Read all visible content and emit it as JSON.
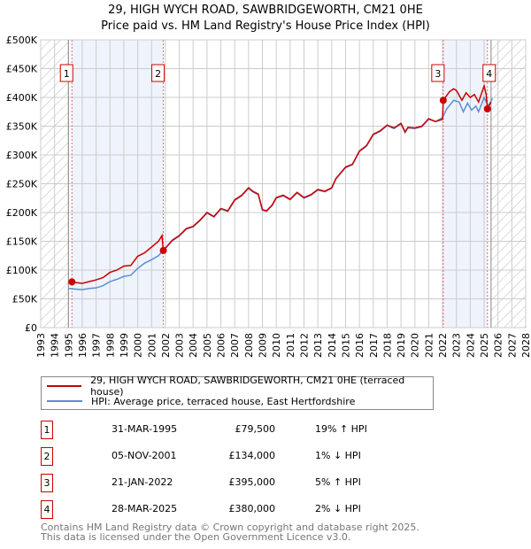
{
  "title": "29, HIGH WYCH ROAD, SAWBRIDGEWORTH, CM21 0HE",
  "subtitle": "Price paid vs. HM Land Registry's House Price Index (HPI)",
  "chart_data": {
    "type": "line",
    "xlim": [
      1993,
      2028
    ],
    "ylim": [
      0,
      500000
    ],
    "x_ticks": [
      "1993",
      "1994",
      "1995",
      "1996",
      "1997",
      "1998",
      "1999",
      "2000",
      "2001",
      "2002",
      "2003",
      "2004",
      "2005",
      "2006",
      "2007",
      "2008",
      "2009",
      "2010",
      "2011",
      "2012",
      "2013",
      "2014",
      "2015",
      "2016",
      "2017",
      "2018",
      "2019",
      "2020",
      "2021",
      "2022",
      "2023",
      "2024",
      "2025",
      "2026",
      "2027",
      "2028"
    ],
    "y_ticks": [
      {
        "v": 0,
        "label": "£0"
      },
      {
        "v": 50000,
        "label": "£50K"
      },
      {
        "v": 100000,
        "label": "£100K"
      },
      {
        "v": 150000,
        "label": "£150K"
      },
      {
        "v": 200000,
        "label": "£200K"
      },
      {
        "v": 250000,
        "label": "£250K"
      },
      {
        "v": 300000,
        "label": "£300K"
      },
      {
        "v": 350000,
        "label": "£350K"
      },
      {
        "v": 400000,
        "label": "£400K"
      },
      {
        "v": 450000,
        "label": "£450K"
      },
      {
        "v": 500000,
        "label": "£500K"
      }
    ],
    "grid": true,
    "data_start": 1995.0,
    "data_end": 2025.5,
    "series": [
      {
        "name": "29, HIGH WYCH ROAD, SAWBRIDGEWORTH, CM21 0HE (terraced house)",
        "color": "#cc0000",
        "points": [
          [
            1995.25,
            79500
          ],
          [
            1995.6,
            78000
          ],
          [
            1996,
            77000
          ],
          [
            1996.5,
            80000
          ],
          [
            1997,
            83000
          ],
          [
            1997.5,
            87000
          ],
          [
            1998,
            96000
          ],
          [
            1998.5,
            100000
          ],
          [
            1999,
            107000
          ],
          [
            1999.5,
            108000
          ],
          [
            2000,
            124000
          ],
          [
            2000.5,
            130000
          ],
          [
            2001,
            140000
          ],
          [
            2001.5,
            150000
          ],
          [
            2001.75,
            160000
          ],
          [
            2001.85,
            134000
          ],
          [
            2002.5,
            152000
          ],
          [
            2003,
            160000
          ],
          [
            2003.5,
            172000
          ],
          [
            2004,
            176000
          ],
          [
            2004.5,
            187000
          ],
          [
            2005,
            200000
          ],
          [
            2005.5,
            193000
          ],
          [
            2006,
            207000
          ],
          [
            2006.5,
            203000
          ],
          [
            2007,
            222000
          ],
          [
            2007.5,
            230000
          ],
          [
            2008,
            243000
          ],
          [
            2008.3,
            237000
          ],
          [
            2008.7,
            232000
          ],
          [
            2009,
            205000
          ],
          [
            2009.3,
            203000
          ],
          [
            2009.7,
            213000
          ],
          [
            2010,
            226000
          ],
          [
            2010.5,
            230000
          ],
          [
            2011,
            223000
          ],
          [
            2011.5,
            235000
          ],
          [
            2012,
            226000
          ],
          [
            2012.5,
            231000
          ],
          [
            2013,
            240000
          ],
          [
            2013.5,
            237000
          ],
          [
            2014,
            243000
          ],
          [
            2014.3,
            259000
          ],
          [
            2015,
            279000
          ],
          [
            2015.5,
            284000
          ],
          [
            2016,
            307000
          ],
          [
            2016.5,
            316000
          ],
          [
            2017,
            336000
          ],
          [
            2017.5,
            342000
          ],
          [
            2018,
            352000
          ],
          [
            2018.5,
            347000
          ],
          [
            2019,
            355000
          ],
          [
            2019.3,
            340000
          ],
          [
            2019.5,
            348000
          ],
          [
            2020,
            347000
          ],
          [
            2020.5,
            350000
          ],
          [
            2021,
            363000
          ],
          [
            2021.5,
            358000
          ],
          [
            2022,
            362000
          ],
          [
            2022.05,
            395000
          ],
          [
            2022.5,
            410000
          ],
          [
            2022.8,
            415000
          ],
          [
            2023,
            412000
          ],
          [
            2023.4,
            395000
          ],
          [
            2023.7,
            408000
          ],
          [
            2024,
            400000
          ],
          [
            2024.3,
            405000
          ],
          [
            2024.6,
            392000
          ],
          [
            2025,
            420000
          ],
          [
            2025.15,
            405000
          ],
          [
            2025.24,
            380000
          ],
          [
            2025.5,
            392000
          ]
        ]
      },
      {
        "name": "HPI: Average price, terraced house, East Hertfordshire",
        "color": "#5b8fd6",
        "points": [
          [
            1995.0,
            68000
          ],
          [
            1995.5,
            67000
          ],
          [
            1996,
            66000
          ],
          [
            1996.5,
            68000
          ],
          [
            1997,
            69000
          ],
          [
            1997.5,
            73000
          ],
          [
            1998,
            80000
          ],
          [
            1998.5,
            84000
          ],
          [
            1999,
            89000
          ],
          [
            1999.5,
            91000
          ],
          [
            2000,
            103000
          ],
          [
            2000.5,
            112000
          ],
          [
            2001,
            118000
          ],
          [
            2001.5,
            125000
          ],
          [
            2001.85,
            134000
          ],
          [
            2002.5,
            151000
          ],
          [
            2003,
            159000
          ],
          [
            2003.5,
            171000
          ],
          [
            2004,
            175000
          ],
          [
            2004.5,
            186000
          ],
          [
            2005,
            199000
          ],
          [
            2005.5,
            192000
          ],
          [
            2006,
            206000
          ],
          [
            2006.5,
            202000
          ],
          [
            2007,
            221000
          ],
          [
            2007.5,
            229000
          ],
          [
            2008,
            242000
          ],
          [
            2008.3,
            236000
          ],
          [
            2008.7,
            231000
          ],
          [
            2009,
            204000
          ],
          [
            2009.3,
            202000
          ],
          [
            2009.7,
            212000
          ],
          [
            2010,
            225000
          ],
          [
            2010.5,
            229000
          ],
          [
            2011,
            222000
          ],
          [
            2011.5,
            234000
          ],
          [
            2012,
            225000
          ],
          [
            2012.5,
            230000
          ],
          [
            2013,
            239000
          ],
          [
            2013.5,
            236000
          ],
          [
            2014,
            242000
          ],
          [
            2014.3,
            258000
          ],
          [
            2015,
            278000
          ],
          [
            2015.5,
            283000
          ],
          [
            2016,
            306000
          ],
          [
            2016.5,
            315000
          ],
          [
            2017,
            335000
          ],
          [
            2017.5,
            341000
          ],
          [
            2018,
            351000
          ],
          [
            2018.5,
            346000
          ],
          [
            2019,
            354000
          ],
          [
            2019.3,
            339000
          ],
          [
            2019.5,
            347000
          ],
          [
            2020,
            346000
          ],
          [
            2020.5,
            349000
          ],
          [
            2021,
            362000
          ],
          [
            2021.5,
            358000
          ],
          [
            2022,
            365000
          ],
          [
            2022.3,
            380000
          ],
          [
            2022.8,
            395000
          ],
          [
            2023.2,
            392000
          ],
          [
            2023.5,
            375000
          ],
          [
            2023.8,
            390000
          ],
          [
            2024.1,
            378000
          ],
          [
            2024.4,
            385000
          ],
          [
            2024.6,
            375000
          ],
          [
            2025,
            400000
          ],
          [
            2025.3,
            385000
          ],
          [
            2025.6,
            398000
          ]
        ]
      }
    ],
    "shaded_ranges": [
      [
        1995.25,
        2001.85
      ],
      [
        2022.05,
        2025.24
      ]
    ],
    "sales": [
      {
        "n": "1",
        "x": 1995.25,
        "price": 79500
      },
      {
        "n": "2",
        "x": 2001.85,
        "price": 134000
      },
      {
        "n": "3",
        "x": 2022.05,
        "price": 395000
      },
      {
        "n": "4",
        "x": 2025.24,
        "price": 380000
      }
    ]
  },
  "legend": {
    "red_label": "29, HIGH WYCH ROAD, SAWBRIDGEWORTH, CM21 0HE (terraced house)",
    "blue_label": "HPI: Average price, terraced house, East Hertfordshire"
  },
  "transactions": [
    {
      "n": "1",
      "date": "31-MAR-1995",
      "price": "£79,500",
      "hpi": "19% ↑ HPI"
    },
    {
      "n": "2",
      "date": "05-NOV-2001",
      "price": "£134,000",
      "hpi": "1% ↓ HPI"
    },
    {
      "n": "3",
      "date": "21-JAN-2022",
      "price": "£395,000",
      "hpi": "5% ↑ HPI"
    },
    {
      "n": "4",
      "date": "28-MAR-2025",
      "price": "£380,000",
      "hpi": "2% ↓ HPI"
    }
  ],
  "footer": {
    "line1": "Contains HM Land Registry data © Crown copyright and database right 2025.",
    "line2": "This data is licensed under the Open Government Licence v3.0."
  }
}
